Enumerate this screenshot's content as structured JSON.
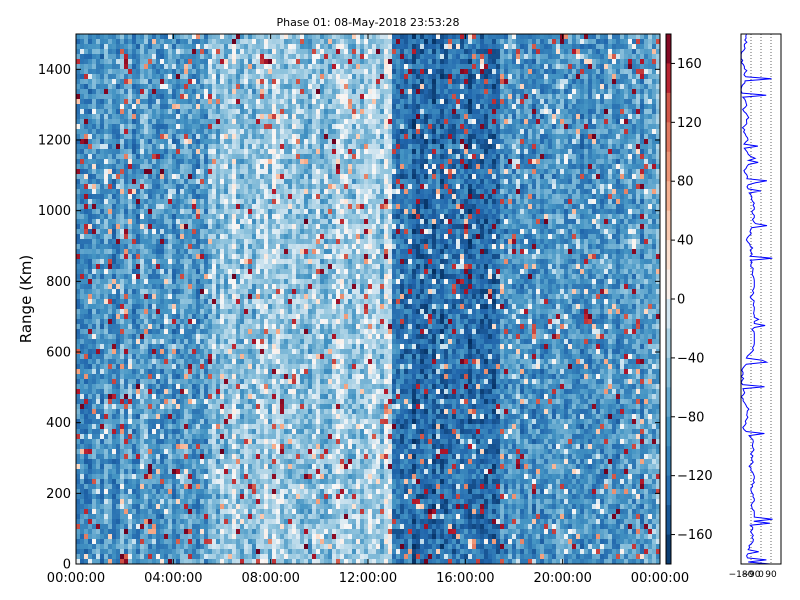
{
  "chart_data": {
    "type": "heatmap",
    "title": "Phase 01: 08-May-2018 23:53:28",
    "xlabel": "",
    "ylabel": "Range (Km)",
    "x_ticks": [
      "00:00:00",
      "04:00:00",
      "08:00:00",
      "12:00:00",
      "16:00:00",
      "20:00:00",
      "00:00:00"
    ],
    "y_ticks": [
      "0",
      "200",
      "400",
      "600",
      "800",
      "1000",
      "1200",
      "1400"
    ],
    "ylim": [
      0,
      1500
    ],
    "x_range_hours": [
      0,
      24
    ],
    "colormap": "RdBu_r",
    "colorbar": {
      "range": [
        -180,
        180
      ],
      "ticks": [
        "160",
        "120",
        "80",
        "40",
        "0",
        "−40",
        "−80",
        "−120",
        "−160"
      ]
    },
    "grid": false,
    "profile_panel": {
      "type": "line",
      "color": "#0000ff",
      "x_ticks": [
        "−180",
        "−90",
        "0",
        "90"
      ],
      "xlim": [
        -180,
        180
      ]
    }
  },
  "colors": {
    "line": "#0000ff",
    "frame": "#000000"
  }
}
